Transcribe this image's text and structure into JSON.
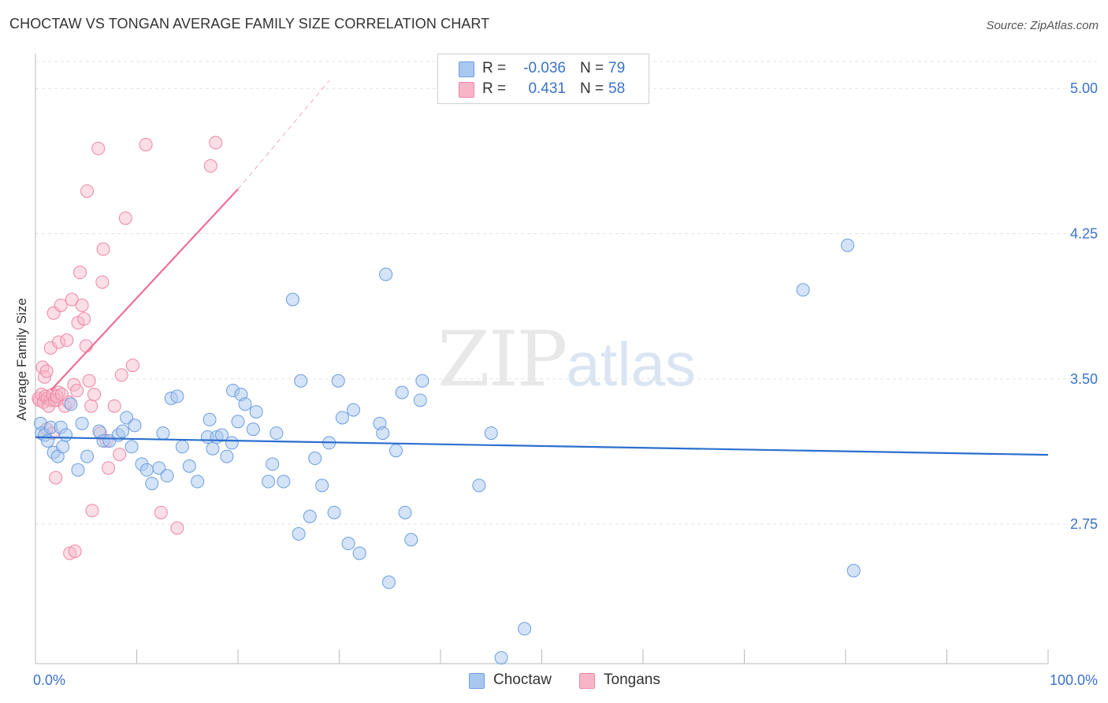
{
  "header": {
    "title": "CHOCTAW VS TONGAN AVERAGE FAMILY SIZE CORRELATION CHART",
    "source": "Source: ZipAtlas.com"
  },
  "watermark": {
    "zip": "ZIP",
    "atlas": "atlas"
  },
  "legend_top": {
    "rows": [
      {
        "r_label": "R =",
        "r_value": "-0.036",
        "n_label": "N =",
        "n_value": "79",
        "color": "#a9c8f0"
      },
      {
        "r_label": "R =",
        "r_value": "0.431",
        "n_label": "N =",
        "n_value": "58",
        "color": "#f7b5c8"
      }
    ]
  },
  "legend_bottom": [
    {
      "label": "Choctaw",
      "color": "#a9c8f0"
    },
    {
      "label": "Tongans",
      "color": "#f7b5c8"
    }
  ],
  "colors": {
    "choctaw_fill": "#a9c8f0",
    "choctaw_stroke": "#6a9ee0",
    "choctaw_line": "#2b6fcf",
    "tongans_fill": "#f7b5c8",
    "tongans_stroke": "#ee86a5",
    "tongans_line": "#ee6f96",
    "axis_text": "#3a72c9"
  },
  "chart_data": {
    "type": "scatter",
    "title": "CHOCTAW VS TONGAN AVERAGE FAMILY SIZE CORRELATION CHART",
    "xlabel": "",
    "ylabel": "Average Family Size",
    "xlim": [
      0,
      100
    ],
    "ylim": [
      2.03,
      5.18
    ],
    "x_tick_labels": [
      {
        "value": 0,
        "label": "0.0%"
      },
      {
        "value": 100,
        "label": "100.0%"
      }
    ],
    "y_ticks": [
      {
        "value": 2.75,
        "label": "2.75"
      },
      {
        "value": 3.5,
        "label": "3.50"
      },
      {
        "value": 4.25,
        "label": "4.25"
      },
      {
        "value": 5.0,
        "label": "5.00"
      }
    ],
    "grid": "horizontal dashed",
    "series": [
      {
        "name": "Choctaw",
        "r": -0.036,
        "n": 79,
        "trend": {
          "x": [
            0,
            100
          ],
          "y": [
            3.199,
            3.108
          ]
        },
        "points": [
          [
            0.5,
            3.27
          ],
          [
            0.6,
            3.22
          ],
          [
            0.9,
            3.21
          ],
          [
            1.2,
            3.18
          ],
          [
            1.5,
            3.25
          ],
          [
            1.8,
            3.12
          ],
          [
            2.2,
            3.1
          ],
          [
            2.5,
            3.25
          ],
          [
            2.7,
            3.15
          ],
          [
            3.0,
            3.21
          ],
          [
            3.5,
            3.37
          ],
          [
            4.2,
            3.03
          ],
          [
            4.6,
            3.27
          ],
          [
            5.1,
            3.1
          ],
          [
            6.3,
            3.23
          ],
          [
            6.7,
            3.18
          ],
          [
            7.3,
            3.18
          ],
          [
            8.2,
            3.21
          ],
          [
            8.6,
            3.23
          ],
          [
            9.0,
            3.3
          ],
          [
            9.5,
            3.15
          ],
          [
            9.8,
            3.26
          ],
          [
            10.5,
            3.06
          ],
          [
            11.0,
            3.03
          ],
          [
            11.5,
            2.96
          ],
          [
            12.2,
            3.04
          ],
          [
            12.6,
            3.22
          ],
          [
            13.0,
            3.0
          ],
          [
            13.4,
            3.4
          ],
          [
            14.0,
            3.41
          ],
          [
            14.5,
            3.15
          ],
          [
            15.2,
            3.05
          ],
          [
            16.0,
            2.97
          ],
          [
            17.0,
            3.2
          ],
          [
            17.2,
            3.29
          ],
          [
            17.5,
            3.14
          ],
          [
            17.9,
            3.2
          ],
          [
            18.4,
            3.21
          ],
          [
            18.9,
            3.1
          ],
          [
            19.4,
            3.17
          ],
          [
            19.5,
            3.44
          ],
          [
            20.0,
            3.28
          ],
          [
            20.3,
            3.42
          ],
          [
            20.7,
            3.37
          ],
          [
            21.5,
            3.24
          ],
          [
            21.8,
            3.33
          ],
          [
            23.0,
            2.97
          ],
          [
            23.4,
            3.06
          ],
          [
            23.8,
            3.22
          ],
          [
            24.5,
            2.97
          ],
          [
            25.4,
            3.91
          ],
          [
            26.0,
            2.7
          ],
          [
            26.2,
            3.49
          ],
          [
            27.1,
            2.79
          ],
          [
            27.6,
            3.09
          ],
          [
            28.3,
            2.95
          ],
          [
            29.0,
            3.17
          ],
          [
            29.5,
            2.81
          ],
          [
            29.9,
            3.49
          ],
          [
            30.3,
            3.3
          ],
          [
            30.9,
            2.65
          ],
          [
            31.4,
            3.34
          ],
          [
            32.0,
            2.6
          ],
          [
            34.0,
            3.27
          ],
          [
            34.3,
            3.22
          ],
          [
            34.6,
            4.04
          ],
          [
            34.9,
            2.45
          ],
          [
            35.6,
            3.13
          ],
          [
            36.2,
            3.43
          ],
          [
            36.5,
            2.81
          ],
          [
            37.1,
            2.67
          ],
          [
            38.0,
            3.39
          ],
          [
            38.2,
            3.49
          ],
          [
            43.8,
            2.95
          ],
          [
            45.0,
            3.22
          ],
          [
            46.0,
            2.06
          ],
          [
            48.3,
            2.21
          ],
          [
            75.8,
            3.96
          ],
          [
            80.2,
            4.19
          ],
          [
            80.8,
            2.51
          ]
        ]
      },
      {
        "name": "Tongans",
        "r": 0.431,
        "n": 58,
        "trend": {
          "x": [
            1.5,
            20.0
          ],
          "y": [
            3.44,
            4.48
          ]
        },
        "trend_dashed": {
          "x": [
            20.0,
            29.0
          ],
          "y": [
            4.48,
            5.04
          ]
        },
        "points": [
          [
            0.3,
            3.4
          ],
          [
            0.4,
            3.39
          ],
          [
            0.6,
            3.42
          ],
          [
            0.8,
            3.38
          ],
          [
            1.0,
            3.41
          ],
          [
            1.2,
            3.4
          ],
          [
            1.5,
            3.39
          ],
          [
            1.7,
            3.42
          ],
          [
            2.1,
            3.39
          ],
          [
            2.3,
            3.43
          ],
          [
            0.7,
            3.56
          ],
          [
            0.9,
            3.51
          ],
          [
            1.1,
            3.54
          ],
          [
            1.3,
            3.36
          ],
          [
            1.5,
            3.66
          ],
          [
            1.8,
            3.84
          ],
          [
            1.9,
            3.39
          ],
          [
            2.1,
            3.41
          ],
          [
            2.3,
            3.69
          ],
          [
            2.5,
            3.88
          ],
          [
            2.6,
            3.42
          ],
          [
            2.9,
            3.36
          ],
          [
            3.1,
            3.7
          ],
          [
            3.3,
            3.38
          ],
          [
            3.6,
            3.91
          ],
          [
            3.8,
            3.47
          ],
          [
            4.1,
            3.44
          ],
          [
            4.2,
            3.79
          ],
          [
            4.4,
            4.05
          ],
          [
            4.6,
            3.88
          ],
          [
            4.8,
            3.81
          ],
          [
            5.0,
            3.67
          ],
          [
            5.1,
            4.47
          ],
          [
            5.3,
            3.49
          ],
          [
            5.5,
            3.36
          ],
          [
            5.8,
            3.42
          ],
          [
            6.2,
            4.69
          ],
          [
            6.4,
            3.22
          ],
          [
            6.6,
            4.0
          ],
          [
            6.7,
            4.17
          ],
          [
            7.2,
            3.04
          ],
          [
            7.8,
            3.36
          ],
          [
            8.3,
            3.11
          ],
          [
            8.5,
            3.52
          ],
          [
            8.9,
            4.33
          ],
          [
            1.1,
            3.24
          ],
          [
            1.7,
            3.22
          ],
          [
            2.0,
            2.99
          ],
          [
            3.4,
            2.6
          ],
          [
            3.9,
            2.61
          ],
          [
            5.6,
            2.82
          ],
          [
            12.4,
            2.81
          ],
          [
            14.0,
            2.73
          ],
          [
            17.3,
            4.6
          ],
          [
            17.8,
            4.72
          ],
          [
            9.6,
            3.57
          ],
          [
            10.9,
            4.71
          ],
          [
            7.0,
            3.18
          ]
        ]
      }
    ]
  }
}
